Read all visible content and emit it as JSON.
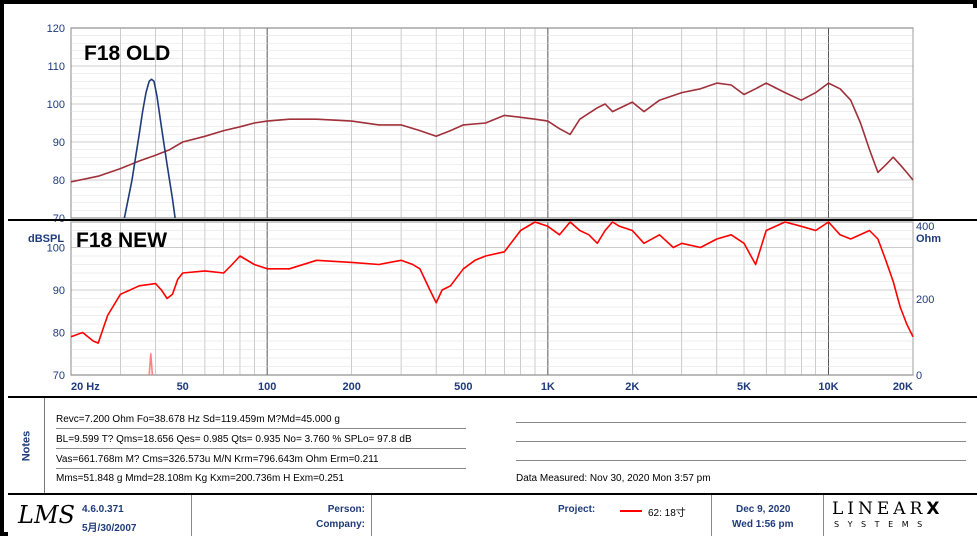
{
  "chart_data": [
    {
      "type": "line",
      "title": "F18 OLD",
      "x_scale": "log",
      "xlim": [
        20,
        20000
      ],
      "ylim": [
        70,
        120
      ],
      "y_ticks": [
        "70",
        "80",
        "90",
        "100",
        "110",
        "120"
      ],
      "series": [
        {
          "color": "#a0303a",
          "points": [
            [
              20,
              79.5
            ],
            [
              25,
              81
            ],
            [
              30,
              83
            ],
            [
              35,
              85
            ],
            [
              40,
              86.5
            ],
            [
              45,
              88
            ],
            [
              50,
              90
            ],
            [
              60,
              91.5
            ],
            [
              70,
              93
            ],
            [
              80,
              94
            ],
            [
              90,
              95
            ],
            [
              100,
              95.5
            ],
            [
              120,
              96
            ],
            [
              150,
              96
            ],
            [
              200,
              95.5
            ],
            [
              250,
              94.5
            ],
            [
              300,
              94.5
            ],
            [
              350,
              93
            ],
            [
              400,
              91.5
            ],
            [
              450,
              93
            ],
            [
              500,
              94.5
            ],
            [
              600,
              95
            ],
            [
              700,
              97
            ],
            [
              800,
              96.5
            ],
            [
              900,
              96
            ],
            [
              1000,
              95.5
            ],
            [
              1100,
              93.5
            ],
            [
              1200,
              92
            ],
            [
              1300,
              96
            ],
            [
              1500,
              99
            ],
            [
              1600,
              100
            ],
            [
              1700,
              98
            ],
            [
              2000,
              100.5
            ],
            [
              2200,
              98
            ],
            [
              2500,
              101
            ],
            [
              3000,
              103
            ],
            [
              3500,
              104
            ],
            [
              4000,
              105.5
            ],
            [
              4500,
              105
            ],
            [
              5000,
              102.5
            ],
            [
              5500,
              104
            ],
            [
              6000,
              105.5
            ],
            [
              7000,
              103
            ],
            [
              8000,
              101
            ],
            [
              9000,
              103
            ],
            [
              10000,
              105.5
            ],
            [
              11000,
              104
            ],
            [
              12000,
              101
            ],
            [
              13000,
              95
            ],
            [
              14000,
              88
            ],
            [
              15000,
              82
            ],
            [
              16000,
              84
            ],
            [
              17000,
              86
            ],
            [
              18000,
              84
            ],
            [
              19000,
              82
            ],
            [
              20000,
              80
            ]
          ]
        },
        {
          "color": "#1f3b7a",
          "points": [
            [
              31,
              70
            ],
            [
              33,
              80
            ],
            [
              35,
              92
            ],
            [
              36,
              98
            ],
            [
              37,
              103
            ],
            [
              38,
              106
            ],
            [
              38.7,
              106.5
            ],
            [
              39.5,
              106
            ],
            [
              40.5,
              102
            ],
            [
              42,
              94
            ],
            [
              44,
              84
            ],
            [
              46,
              75
            ],
            [
              47,
              70
            ]
          ]
        }
      ]
    },
    {
      "type": "line",
      "title": "F18 NEW",
      "x_scale": "log",
      "xlim": [
        20,
        20000
      ],
      "ylim": [
        70,
        106
      ],
      "ylabel": "dBSPL",
      "y2label": "Ohm",
      "y_ticks": [
        "70",
        "80",
        "90",
        "100"
      ],
      "y2_ticks": [
        "0",
        "200",
        "400"
      ],
      "x_ticks": [
        "20 Hz",
        "50",
        "100",
        "200",
        "500",
        "1K",
        "2K",
        "5K",
        "10K",
        "20K"
      ],
      "series": [
        {
          "name": "62: 18寸",
          "color": "#ff0000",
          "points": [
            [
              20,
              79
            ],
            [
              22,
              80
            ],
            [
              24,
              78
            ],
            [
              25,
              77.5
            ],
            [
              27,
              84
            ],
            [
              30,
              89
            ],
            [
              35,
              91
            ],
            [
              40,
              91.5
            ],
            [
              42,
              90
            ],
            [
              44,
              88
            ],
            [
              46,
              89
            ],
            [
              48,
              92.5
            ],
            [
              50,
              94
            ],
            [
              60,
              94.5
            ],
            [
              70,
              94
            ],
            [
              75,
              96
            ],
            [
              80,
              98
            ],
            [
              90,
              96
            ],
            [
              100,
              95
            ],
            [
              120,
              95
            ],
            [
              150,
              97
            ],
            [
              200,
              96.5
            ],
            [
              250,
              96
            ],
            [
              300,
              97
            ],
            [
              330,
              96
            ],
            [
              350,
              95
            ],
            [
              380,
              90
            ],
            [
              400,
              87
            ],
            [
              420,
              90
            ],
            [
              450,
              91
            ],
            [
              500,
              95
            ],
            [
              550,
              97
            ],
            [
              600,
              98
            ],
            [
              700,
              99
            ],
            [
              800,
              104
            ],
            [
              900,
              106
            ],
            [
              1000,
              105
            ],
            [
              1100,
              103
            ],
            [
              1200,
              106
            ],
            [
              1300,
              104
            ],
            [
              1400,
              103
            ],
            [
              1500,
              101
            ],
            [
              1600,
              104
            ],
            [
              1700,
              106
            ],
            [
              1800,
              105
            ],
            [
              2000,
              104
            ],
            [
              2200,
              101
            ],
            [
              2500,
              103
            ],
            [
              2800,
              100
            ],
            [
              3000,
              101
            ],
            [
              3500,
              100
            ],
            [
              4000,
              102
            ],
            [
              4500,
              103
            ],
            [
              5000,
              101
            ],
            [
              5500,
              96
            ],
            [
              6000,
              104
            ],
            [
              7000,
              106
            ],
            [
              8000,
              105
            ],
            [
              9000,
              104
            ],
            [
              10000,
              106
            ],
            [
              11000,
              103
            ],
            [
              12000,
              102
            ],
            [
              14000,
              104
            ],
            [
              15000,
              102
            ],
            [
              16000,
              97
            ],
            [
              17000,
              92
            ],
            [
              18000,
              86
            ],
            [
              19000,
              82
            ],
            [
              20000,
              79
            ]
          ]
        },
        {
          "color": "#ff8080",
          "points": [
            [
              38,
              70
            ],
            [
              38.5,
              75
            ],
            [
              39,
              70
            ]
          ]
        }
      ]
    }
  ],
  "notes": {
    "label": "Notes",
    "line1": "Revc=7.200 Ohm  Fo=38.678 Hz  Sd=119.459m M?Md=45.000 g",
    "line2": "BL=9.599 T?  Qms=18.656  Qes= 0.985  Qts= 0.935  No= 3.760 %  SPLo= 97.8 dB",
    "line3": "Vas=661.768m M? Cms=326.573u M/N  Krm=796.643m Ohm  Erm=0.211",
    "line4": "Mms=51.848 g  Mmd=28.108m Kg  Kxm=200.736m H  Exm=0.251",
    "data_measured": "Data Measured: Nov 30, 2020  Mon  3:57 pm"
  },
  "footer": {
    "logo": "LMS",
    "version": "4.6.0.371",
    "version_date": "5月/30/2007",
    "person_label": "Person:",
    "company_label": "Company:",
    "project_label": "Project:",
    "project_value": "62: 18寸",
    "date": "Dec  9, 2020",
    "time": "Wed  1:56 pm",
    "brand_top": "LINEAR",
    "brand_x": "X",
    "brand_bottom": "S Y S T E M S"
  }
}
